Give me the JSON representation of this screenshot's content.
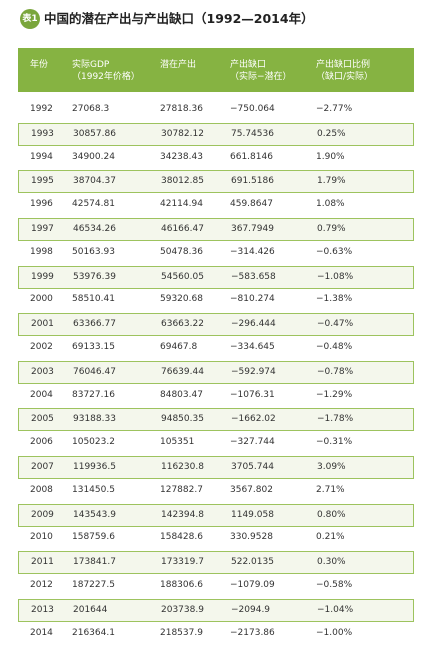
{
  "header": {
    "badge": "表1",
    "title": "中国的潜在产出与产出缺口（1992—2014年）"
  },
  "table": {
    "columns": [
      [
        "年份"
      ],
      [
        "实际GDP",
        "（1992年价格）"
      ],
      [
        "潜在产出"
      ],
      [
        "产出缺口",
        "（实际−潜在）"
      ],
      [
        "产出缺口比例",
        "（缺口/实际）"
      ]
    ],
    "rows": [
      [
        "1992",
        "27068.3",
        "27818.36",
        "−750.064",
        "−2.77%"
      ],
      [
        "1993",
        "30857.86",
        "30782.12",
        "75.74536",
        "0.25%"
      ],
      [
        "1994",
        "34900.24",
        "34238.43",
        "661.8146",
        "1.90%"
      ],
      [
        "1995",
        "38704.37",
        "38012.85",
        "691.5186",
        "1.79%"
      ],
      [
        "1996",
        "42574.81",
        "42114.94",
        "459.8647",
        "1.08%"
      ],
      [
        "1997",
        "46534.26",
        "46166.47",
        "367.7949",
        "0.79%"
      ],
      [
        "1998",
        "50163.93",
        "50478.36",
        "−314.426",
        "−0.63%"
      ],
      [
        "1999",
        "53976.39",
        "54560.05",
        "−583.658",
        "−1.08%"
      ],
      [
        "2000",
        "58510.41",
        "59320.68",
        "−810.274",
        "−1.38%"
      ],
      [
        "2001",
        "63366.77",
        "63663.22",
        "−296.444",
        "−0.47%"
      ],
      [
        "2002",
        "69133.15",
        "69467.8",
        "−334.645",
        "−0.48%"
      ],
      [
        "2003",
        "76046.47",
        "76639.44",
        "−592.974",
        "−0.78%"
      ],
      [
        "2004",
        "83727.16",
        "84803.47",
        "−1076.31",
        "−1.29%"
      ],
      [
        "2005",
        "93188.33",
        "94850.35",
        "−1662.02",
        "−1.78%"
      ],
      [
        "2006",
        "105023.2",
        "105351",
        "−327.744",
        "−0.31%"
      ],
      [
        "2007",
        "119936.5",
        "116230.8",
        "3705.744",
        "3.09%"
      ],
      [
        "2008",
        "131450.5",
        "127882.7",
        "3567.802",
        "2.71%"
      ],
      [
        "2009",
        "143543.9",
        "142394.8",
        "1149.058",
        "0.80%"
      ],
      [
        "2010",
        "158759.6",
        "158428.6",
        "330.9528",
        "0.21%"
      ],
      [
        "2011",
        "173841.7",
        "173319.7",
        "522.0135",
        "0.30%"
      ],
      [
        "2012",
        "187227.5",
        "188306.6",
        "−1079.09",
        "−0.58%"
      ],
      [
        "2013",
        "201644",
        "203738.9",
        "−2094.9",
        "−1.04%"
      ],
      [
        "2014",
        "216364.1",
        "218537.9",
        "−2173.86",
        "−1.00%"
      ]
    ]
  }
}
